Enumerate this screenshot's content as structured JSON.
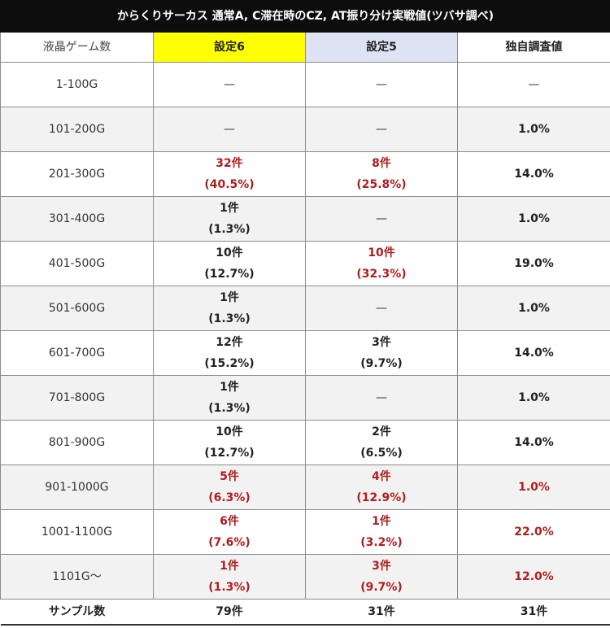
{
  "title": "からくりサーカス 通常A, C滞在時のCZ, AT振り分け実戦値(ツバサ調べ)",
  "headers": {
    "games": "液晶ゲーム数",
    "s6": "設定6",
    "s5": "設定5",
    "own": "独自調査値"
  },
  "rows": [
    {
      "range": "1-100G",
      "s6": {
        "count": "",
        "pct": "",
        "dash": "—",
        "red": false
      },
      "s5": {
        "count": "",
        "pct": "",
        "dash": "—",
        "red": false
      },
      "own": {
        "value": "—",
        "red": false,
        "dash": true
      }
    },
    {
      "range": "101-200G",
      "s6": {
        "count": "",
        "pct": "",
        "dash": "—",
        "red": false
      },
      "s5": {
        "count": "",
        "pct": "",
        "dash": "—",
        "red": false
      },
      "own": {
        "value": "1.0%",
        "red": false,
        "dash": false
      }
    },
    {
      "range": "201-300G",
      "s6": {
        "count": "32件",
        "pct": "(40.5%)",
        "dash": "",
        "red": true
      },
      "s5": {
        "count": "8件",
        "pct": "(25.8%)",
        "dash": "",
        "red": true
      },
      "own": {
        "value": "14.0%",
        "red": false,
        "dash": false
      }
    },
    {
      "range": "301-400G",
      "s6": {
        "count": "1件",
        "pct": "(1.3%)",
        "dash": "",
        "red": false
      },
      "s5": {
        "count": "",
        "pct": "",
        "dash": "—",
        "red": false
      },
      "own": {
        "value": "1.0%",
        "red": false,
        "dash": false
      }
    },
    {
      "range": "401-500G",
      "s6": {
        "count": "10件",
        "pct": "(12.7%)",
        "dash": "",
        "red": false
      },
      "s5": {
        "count": "10件",
        "pct": "(32.3%)",
        "dash": "",
        "red": true
      },
      "own": {
        "value": "19.0%",
        "red": false,
        "dash": false
      }
    },
    {
      "range": "501-600G",
      "s6": {
        "count": "1件",
        "pct": "(1.3%)",
        "dash": "",
        "red": false
      },
      "s5": {
        "count": "",
        "pct": "",
        "dash": "—",
        "red": false
      },
      "own": {
        "value": "1.0%",
        "red": false,
        "dash": false
      }
    },
    {
      "range": "601-700G",
      "s6": {
        "count": "12件",
        "pct": "(15.2%)",
        "dash": "",
        "red": false
      },
      "s5": {
        "count": "3件",
        "pct": "(9.7%)",
        "dash": "",
        "red": false
      },
      "own": {
        "value": "14.0%",
        "red": false,
        "dash": false
      }
    },
    {
      "range": "701-800G",
      "s6": {
        "count": "1件",
        "pct": "(1.3%)",
        "dash": "",
        "red": false
      },
      "s5": {
        "count": "",
        "pct": "",
        "dash": "—",
        "red": false
      },
      "own": {
        "value": "1.0%",
        "red": false,
        "dash": false
      }
    },
    {
      "range": "801-900G",
      "s6": {
        "count": "10件",
        "pct": "(12.7%)",
        "dash": "",
        "red": false
      },
      "s5": {
        "count": "2件",
        "pct": "(6.5%)",
        "dash": "",
        "red": false
      },
      "own": {
        "value": "14.0%",
        "red": false,
        "dash": false
      }
    },
    {
      "range": "901-1000G",
      "s6": {
        "count": "5件",
        "pct": "(6.3%)",
        "dash": "",
        "red": true
      },
      "s5": {
        "count": "4件",
        "pct": "(12.9%)",
        "dash": "",
        "red": true
      },
      "own": {
        "value": "1.0%",
        "red": true,
        "dash": false
      }
    },
    {
      "range": "1001-1100G",
      "s6": {
        "count": "6件",
        "pct": "(7.6%)",
        "dash": "",
        "red": true
      },
      "s5": {
        "count": "1件",
        "pct": "(3.2%)",
        "dash": "",
        "red": true
      },
      "own": {
        "value": "22.0%",
        "red": true,
        "dash": false
      }
    },
    {
      "range": "1101G〜",
      "s6": {
        "count": "1件",
        "pct": "(1.3%)",
        "dash": "",
        "red": true
      },
      "s5": {
        "count": "3件",
        "pct": "(9.7%)",
        "dash": "",
        "red": true
      },
      "own": {
        "value": "12.0%",
        "red": true,
        "dash": false
      }
    }
  ],
  "totals": {
    "label": "サンプル数",
    "s6": "79件",
    "s5": "31件",
    "own": "31件"
  },
  "colors": {
    "title_bg": "#0d0d0d",
    "s6_header": "#ffff00",
    "s5_header": "#dde3f3",
    "red_text": "#b01e1e",
    "shade_row": "#f2f2f2"
  }
}
